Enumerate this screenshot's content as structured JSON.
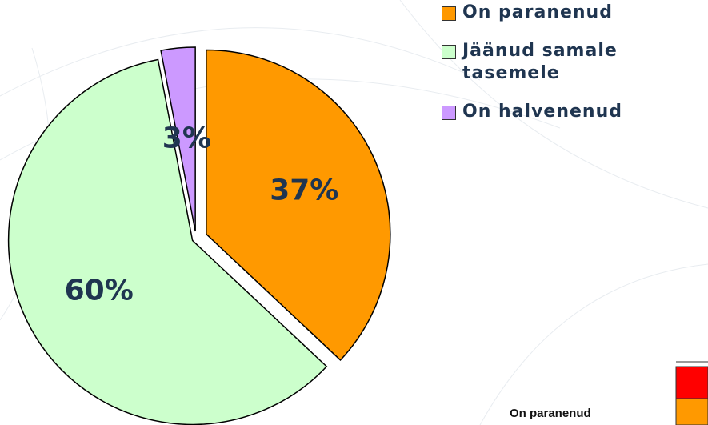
{
  "chart_data": {
    "type": "pie",
    "categories": [
      "On paranenud",
      "Jäänud samale tasemele",
      "On halvenenud"
    ],
    "values": [
      37,
      60,
      3
    ],
    "value_labels": [
      "37%",
      "60%",
      "3%"
    ],
    "colors": [
      "#ff9900",
      "#ccffcc",
      "#cc99ff"
    ],
    "legend": "right"
  },
  "inset": {
    "label": "On paranenud"
  }
}
